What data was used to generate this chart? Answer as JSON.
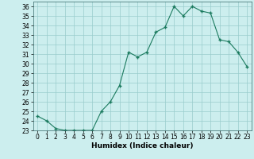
{
  "x": [
    0,
    1,
    2,
    3,
    4,
    5,
    6,
    7,
    8,
    9,
    10,
    11,
    12,
    13,
    14,
    15,
    16,
    17,
    18,
    19,
    20,
    21,
    22,
    23
  ],
  "y": [
    24.5,
    24.0,
    23.2,
    23.0,
    23.0,
    23.0,
    23.0,
    25.0,
    26.0,
    27.7,
    31.2,
    30.7,
    31.2,
    33.3,
    33.8,
    36.0,
    35.0,
    36.0,
    35.5,
    35.3,
    32.5,
    32.3,
    31.2,
    29.7
  ],
  "line_color": "#1a7a5e",
  "marker": "+",
  "marker_size": 3,
  "marker_color": "#1a7a5e",
  "bg_color": "#cceeee",
  "grid_color": "#99cccc",
  "xlabel": "Humidex (Indice chaleur)",
  "ylim": [
    23,
    36.5
  ],
  "xlim": [
    -0.5,
    23.5
  ],
  "yticks": [
    23,
    24,
    25,
    26,
    27,
    28,
    29,
    30,
    31,
    32,
    33,
    34,
    35,
    36
  ],
  "xticks": [
    0,
    1,
    2,
    3,
    4,
    5,
    6,
    7,
    8,
    9,
    10,
    11,
    12,
    13,
    14,
    15,
    16,
    17,
    18,
    19,
    20,
    21,
    22,
    23
  ],
  "label_fontsize": 6.5,
  "tick_fontsize": 5.5
}
